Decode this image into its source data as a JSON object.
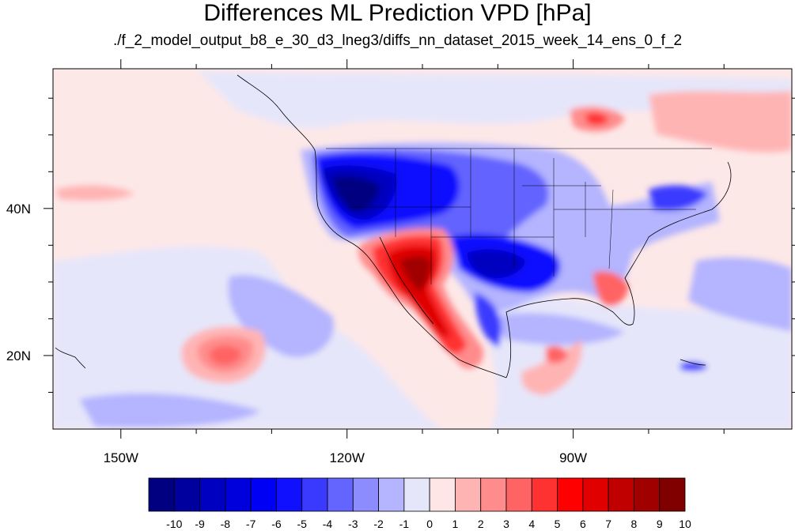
{
  "title": "Differences ML Prediction VPD [hPa]",
  "subtitle": "./f_2_model_output_b8_e_30_d3_lneg3/diffs_nn_dataset_2015_week_14_ens_0_f_2",
  "map": {
    "lon_range": [
      -159,
      -61
    ],
    "lat_range": [
      10,
      59
    ],
    "lon_ticks": [
      {
        "value": -150,
        "label": "150W"
      },
      {
        "value": -120,
        "label": "120W"
      },
      {
        "value": -90,
        "label": "90W"
      }
    ],
    "lat_ticks": [
      {
        "value": 40,
        "label": "40N"
      },
      {
        "value": 20,
        "label": "20N"
      }
    ]
  },
  "colorbar": {
    "labels": [
      "-10",
      "-9",
      "-8",
      "-7",
      "-6",
      "-5",
      "-4",
      "-3",
      "-2",
      "-1",
      "0",
      "1",
      "2",
      "3",
      "4",
      "5",
      "6",
      "7",
      "8",
      "9",
      "10"
    ],
    "colors": [
      "#000080",
      "#00009e",
      "#0000c0",
      "#0000dc",
      "#0000f5",
      "#1010ff",
      "#3a3aff",
      "#6464ff",
      "#8c8cff",
      "#b4b4ff",
      "#e6e6fa",
      "#ffe6e6",
      "#ffb4b4",
      "#ff8c8c",
      "#ff6464",
      "#ff3232",
      "#ff0000",
      "#e00000",
      "#c00000",
      "#a00000",
      "#800000"
    ]
  }
}
